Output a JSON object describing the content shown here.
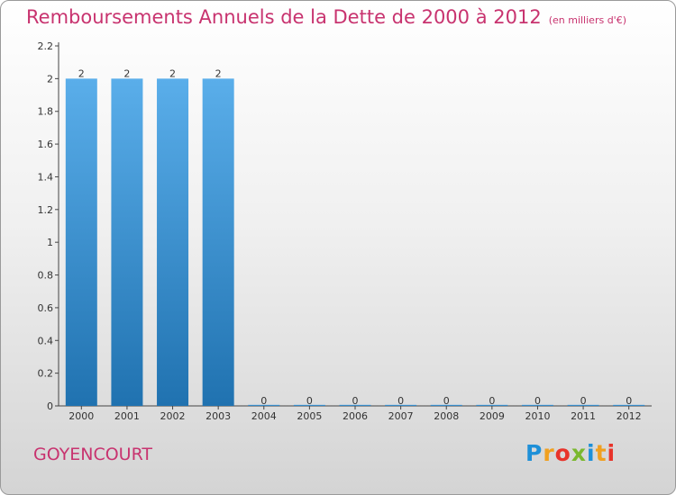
{
  "header": {
    "title": "Remboursements Annuels de la Dette de 2000 à 2012",
    "unit": "(en milliers d'€)"
  },
  "footer": {
    "commune": "GOYENCOURT",
    "brand": "Proxiti"
  },
  "colors": {
    "title": "#c8336f",
    "bar_top": "#5aaeea",
    "bar_bottom": "#2072b0"
  },
  "chart_data": {
    "type": "bar",
    "title": "Remboursements Annuels de la Dette de 2000 à 2012",
    "unit": "(en milliers d'€)",
    "categories": [
      "2000",
      "2001",
      "2002",
      "2003",
      "2004",
      "2005",
      "2006",
      "2007",
      "2008",
      "2009",
      "2010",
      "2011",
      "2012"
    ],
    "values": [
      2,
      2,
      2,
      2,
      0,
      0,
      0,
      0,
      0,
      0,
      0,
      0,
      0
    ],
    "ylim": [
      0,
      2.2
    ],
    "yticks": [
      "0",
      "0.2",
      "0.4",
      "0.6",
      "0.8",
      "1",
      "1.2",
      "1.4",
      "1.6",
      "1.8",
      "2",
      "2.2"
    ],
    "xlabel": "",
    "ylabel": ""
  }
}
